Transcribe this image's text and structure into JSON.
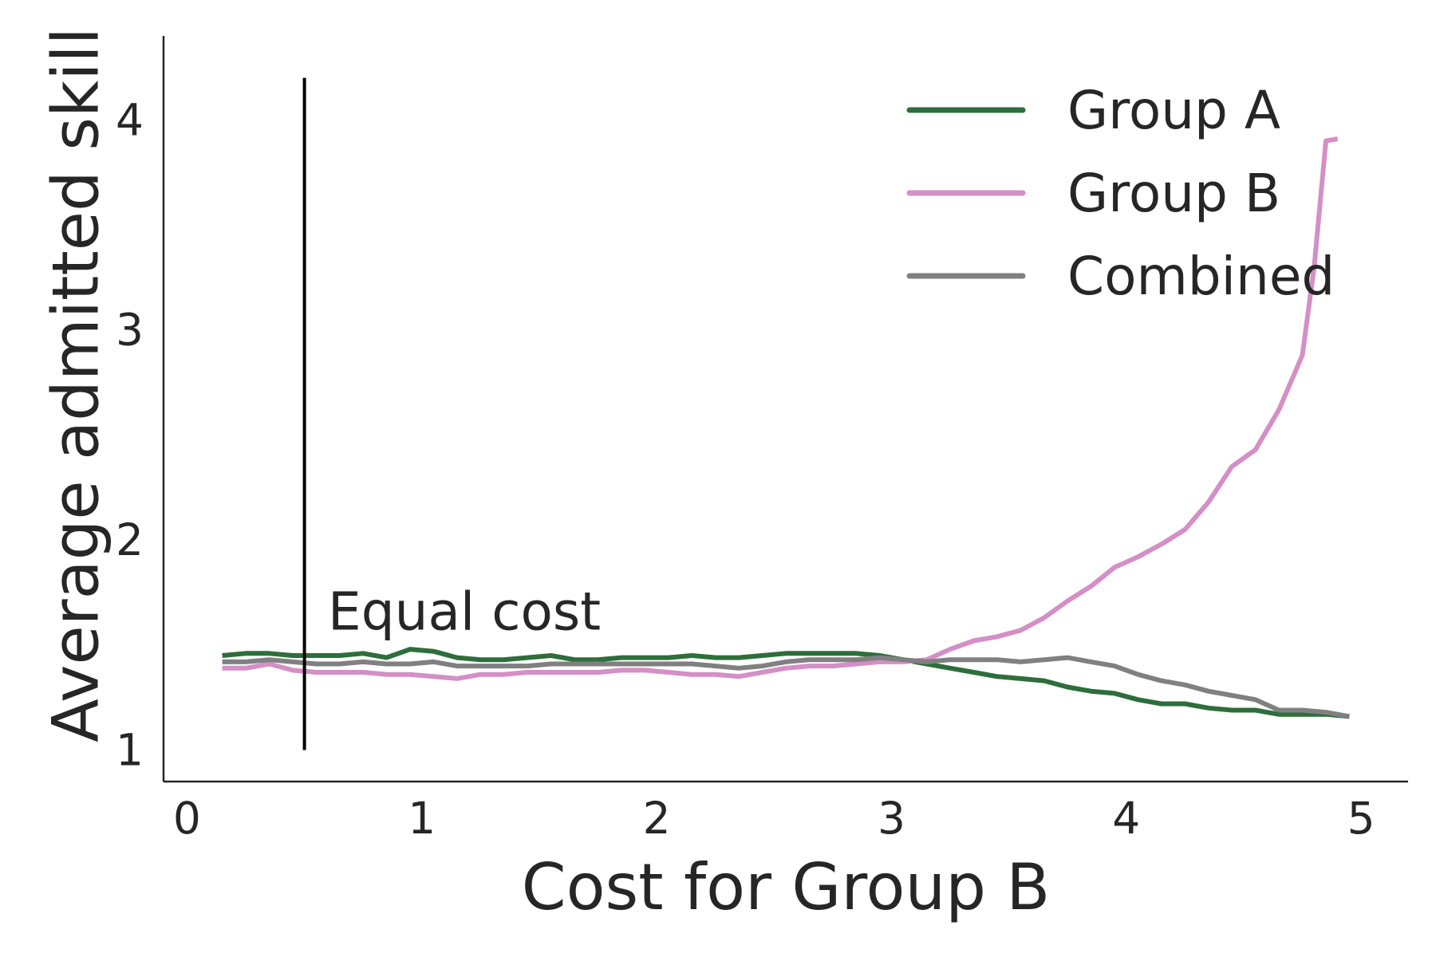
{
  "chart_data": {
    "type": "line",
    "title": "",
    "xlabel": "Cost for Group B",
    "ylabel": "Average admitted skill",
    "xlim": [
      -0.1,
      5.2
    ],
    "ylim": [
      0.85,
      4.4
    ],
    "xticks": [
      0,
      1,
      2,
      3,
      4,
      5
    ],
    "xtick_labels": [
      "0",
      "1",
      "2",
      "3",
      "4",
      "5"
    ],
    "yticks": [
      1,
      2,
      3,
      4
    ],
    "ytick_labels": [
      "1",
      "2",
      "3",
      "4"
    ],
    "grid": false,
    "legend_position": "top-right",
    "series": [
      {
        "name": "Group A",
        "color": "#2d6e3a",
        "x": [
          0.15,
          0.25,
          0.35,
          0.45,
          0.55,
          0.65,
          0.75,
          0.85,
          0.95,
          1.05,
          1.15,
          1.25,
          1.35,
          1.45,
          1.55,
          1.65,
          1.75,
          1.85,
          1.95,
          2.05,
          2.15,
          2.25,
          2.35,
          2.45,
          2.55,
          2.65,
          2.75,
          2.85,
          2.95,
          3.05,
          3.15,
          3.25,
          3.35,
          3.45,
          3.55,
          3.65,
          3.75,
          3.85,
          3.95,
          4.05,
          4.15,
          4.25,
          4.35,
          4.45,
          4.55,
          4.65,
          4.75,
          4.85,
          4.95
        ],
        "y": [
          1.45,
          1.46,
          1.46,
          1.45,
          1.45,
          1.45,
          1.46,
          1.44,
          1.48,
          1.47,
          1.44,
          1.43,
          1.43,
          1.44,
          1.45,
          1.43,
          1.43,
          1.44,
          1.44,
          1.44,
          1.45,
          1.44,
          1.44,
          1.45,
          1.46,
          1.46,
          1.46,
          1.46,
          1.45,
          1.43,
          1.41,
          1.39,
          1.37,
          1.35,
          1.34,
          1.33,
          1.3,
          1.28,
          1.27,
          1.24,
          1.22,
          1.22,
          1.2,
          1.19,
          1.19,
          1.17,
          1.17,
          1.17,
          1.16
        ]
      },
      {
        "name": "Group B",
        "color": "#d48fc6",
        "x": [
          0.15,
          0.25,
          0.35,
          0.45,
          0.55,
          0.65,
          0.75,
          0.85,
          0.95,
          1.05,
          1.15,
          1.25,
          1.35,
          1.45,
          1.55,
          1.65,
          1.75,
          1.85,
          1.95,
          2.05,
          2.15,
          2.25,
          2.35,
          2.45,
          2.55,
          2.65,
          2.75,
          2.85,
          2.95,
          3.05,
          3.15,
          3.25,
          3.35,
          3.45,
          3.55,
          3.65,
          3.75,
          3.85,
          3.95,
          4.05,
          4.15,
          4.25,
          4.35,
          4.45,
          4.55,
          4.65,
          4.75,
          4.8,
          4.85,
          4.9
        ],
        "y": [
          1.39,
          1.39,
          1.41,
          1.38,
          1.37,
          1.37,
          1.37,
          1.36,
          1.36,
          1.35,
          1.34,
          1.36,
          1.36,
          1.37,
          1.37,
          1.37,
          1.37,
          1.38,
          1.38,
          1.37,
          1.36,
          1.36,
          1.35,
          1.37,
          1.39,
          1.4,
          1.4,
          1.41,
          1.42,
          1.42,
          1.43,
          1.48,
          1.52,
          1.54,
          1.57,
          1.63,
          1.71,
          1.78,
          1.87,
          1.92,
          1.98,
          2.05,
          2.18,
          2.35,
          2.43,
          2.62,
          2.88,
          3.3,
          3.9,
          3.91
        ]
      },
      {
        "name": "Combined",
        "color": "#808080",
        "x": [
          0.15,
          0.25,
          0.35,
          0.45,
          0.55,
          0.65,
          0.75,
          0.85,
          0.95,
          1.05,
          1.15,
          1.25,
          1.35,
          1.45,
          1.55,
          1.65,
          1.75,
          1.85,
          1.95,
          2.05,
          2.15,
          2.25,
          2.35,
          2.45,
          2.55,
          2.65,
          2.75,
          2.85,
          2.95,
          3.05,
          3.15,
          3.25,
          3.35,
          3.45,
          3.55,
          3.65,
          3.75,
          3.85,
          3.95,
          4.05,
          4.15,
          4.25,
          4.35,
          4.45,
          4.55,
          4.65,
          4.75,
          4.85,
          4.95
        ],
        "y": [
          1.42,
          1.42,
          1.43,
          1.42,
          1.41,
          1.41,
          1.42,
          1.41,
          1.41,
          1.42,
          1.4,
          1.4,
          1.4,
          1.4,
          1.41,
          1.41,
          1.41,
          1.41,
          1.41,
          1.41,
          1.41,
          1.4,
          1.39,
          1.4,
          1.42,
          1.43,
          1.43,
          1.43,
          1.44,
          1.43,
          1.42,
          1.43,
          1.43,
          1.43,
          1.42,
          1.43,
          1.44,
          1.42,
          1.4,
          1.36,
          1.33,
          1.31,
          1.28,
          1.26,
          1.24,
          1.19,
          1.19,
          1.18,
          1.16
        ]
      }
    ],
    "vline": {
      "x": 0.5,
      "y_range": [
        1.0,
        4.2
      ],
      "color": "#000000"
    },
    "annotations": [
      {
        "text": "Equal cost",
        "x": 0.6,
        "y": 1.65
      }
    ]
  }
}
